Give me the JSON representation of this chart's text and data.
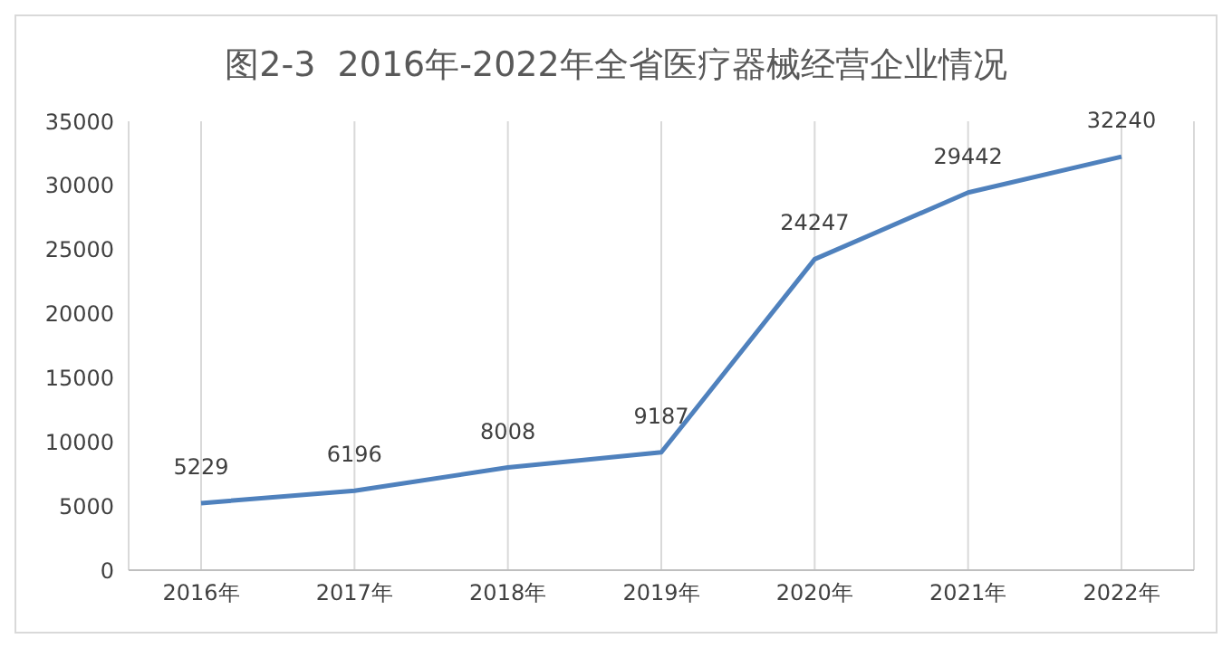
{
  "chart_data": {
    "type": "line",
    "title": "图2-3  2016年-2022年全省医疗器械经营企业情况",
    "categories": [
      "2016年",
      "2017年",
      "2018年",
      "2019年",
      "2020年",
      "2021年",
      "2022年"
    ],
    "values": [
      5229,
      6196,
      8008,
      9187,
      24247,
      29442,
      32240
    ],
    "color": "#4f81bd",
    "ylim": [
      0,
      35000
    ],
    "yticks": [
      0,
      5000,
      10000,
      15000,
      20000,
      25000,
      30000,
      35000
    ],
    "grid": "x",
    "marker": "none",
    "line_style": "solid",
    "data_labels": true
  }
}
